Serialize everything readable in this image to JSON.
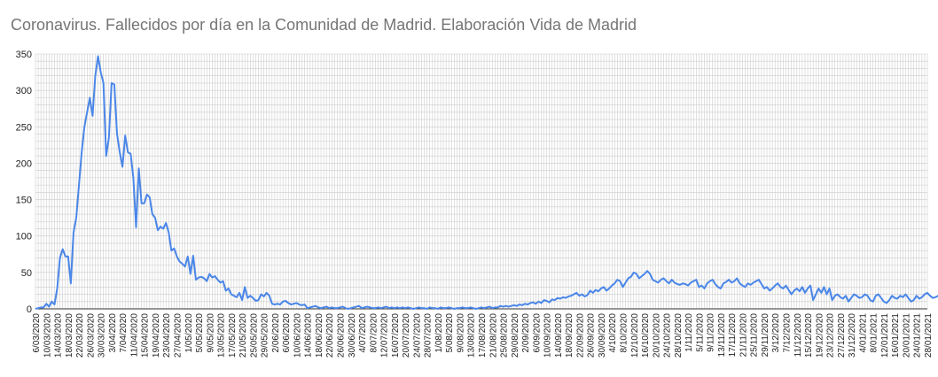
{
  "chart_data": {
    "type": "line",
    "title": "Coronavirus. Fallecidos por día en la Comunidad de Madrid. Elaboración Vida de Madrid",
    "xlabel": "",
    "ylabel": "",
    "ylim": [
      0,
      350
    ],
    "yticks": [
      "0",
      "50",
      "100",
      "150",
      "200",
      "250",
      "300",
      "350"
    ],
    "grid": true,
    "legend": "none",
    "line_color": "#4a86e8",
    "x_tick_labels": [
      "6/03/2020",
      "10/03/2020",
      "14/03/2020",
      "18/03/2020",
      "22/03/2020",
      "26/03/2020",
      "30/03/2020",
      "3/04/2020",
      "7/04/2020",
      "11/04/2020",
      "15/04/2020",
      "19/04/2020",
      "23/04/2020",
      "27/04/2020",
      "1/05/2020",
      "5/05/2020",
      "9/05/2020",
      "13/05/2020",
      "17/05/2020",
      "21/05/2020",
      "25/05/2020",
      "29/05/2020",
      "2/06/2020",
      "6/06/2020",
      "10/06/2020",
      "14/06/2020",
      "18/06/2020",
      "22/06/2020",
      "26/06/2020",
      "30/06/2020",
      "4/07/2020",
      "8/07/2020",
      "12/07/2020",
      "16/07/2020",
      "20/07/2020",
      "24/07/2020",
      "28/07/2020",
      "1/08/2020",
      "5/08/2020",
      "9/08/2020",
      "13/08/2020",
      "17/08/2020",
      "21/08/2020",
      "25/08/2020",
      "29/08/2020",
      "2/09/2020",
      "6/09/2020",
      "10/09/2020",
      "14/09/2020",
      "18/09/2020",
      "22/09/2020",
      "26/09/2020",
      "30/09/2020",
      "4/10/2020",
      "8/10/2020",
      "12/10/2020",
      "16/10/2020",
      "20/10/2020",
      "24/10/2020",
      "28/10/2020",
      "1/11/2020",
      "5/11/2020",
      "9/11/2020",
      "13/11/2020",
      "17/11/2020",
      "21/11/2020",
      "25/11/2020",
      "29/11/2020",
      "3/12/2020",
      "7/12/2020",
      "11/12/2020",
      "15/12/2020",
      "19/12/2020",
      "23/12/2020",
      "27/12/2020",
      "31/12/2020",
      "4/01/2021",
      "8/01/2021",
      "12/01/2021",
      "16/01/2021",
      "20/01/2021",
      "24/01/2021",
      "28/01/2021"
    ],
    "series": [
      {
        "x_start": "6/03/2020",
        "values": [
          0,
          1,
          2,
          2,
          7,
          3,
          10,
          6,
          28,
          70,
          82,
          72,
          72,
          35,
          105,
          125,
          170,
          215,
          250,
          270,
          290,
          265,
          320,
          347,
          325,
          310,
          210,
          235,
          310,
          308,
          240,
          215,
          195,
          238,
          215,
          213,
          180,
          112,
          193,
          145,
          145,
          157,
          153,
          130,
          125,
          108,
          113,
          110,
          118,
          105,
          80,
          83,
          72,
          65,
          62,
          58,
          72,
          48,
          73,
          40,
          43,
          44,
          42,
          38,
          48,
          43,
          45,
          40,
          36,
          38,
          25,
          28,
          20,
          18,
          16,
          22,
          12,
          30,
          15,
          18,
          15,
          11,
          12,
          20,
          17,
          22,
          18,
          7,
          6,
          7,
          6,
          10,
          11,
          8,
          6,
          7,
          8,
          6,
          5,
          6,
          1,
          2,
          3,
          4,
          2,
          1,
          2,
          3,
          1,
          2,
          1,
          1,
          2,
          3,
          1,
          0,
          1,
          2,
          3,
          4,
          1,
          2,
          3,
          2,
          1,
          1,
          2,
          1,
          2,
          3,
          1,
          2,
          1,
          2,
          1,
          2,
          1,
          2,
          1,
          0,
          1,
          2,
          1,
          1,
          0,
          2,
          1,
          1,
          0,
          2,
          1,
          1,
          2,
          1,
          0,
          1,
          1,
          2,
          1,
          1,
          2,
          1,
          0,
          1,
          2,
          1,
          2,
          3,
          1,
          2,
          2,
          4,
          3,
          4,
          3,
          4,
          5,
          4,
          6,
          5,
          7,
          6,
          8,
          9,
          7,
          10,
          8,
          12,
          11,
          9,
          13,
          12,
          15,
          14,
          16,
          15,
          17,
          18,
          20,
          22,
          18,
          20,
          17,
          19,
          25,
          22,
          26,
          24,
          28,
          30,
          25,
          28,
          32,
          35,
          40,
          38,
          30,
          36,
          42,
          44,
          50,
          48,
          42,
          45,
          48,
          52,
          48,
          40,
          38,
          36,
          40,
          42,
          38,
          35,
          40,
          36,
          34,
          33,
          35,
          34,
          32,
          36,
          38,
          40,
          30,
          32,
          28,
          35,
          38,
          40,
          34,
          30,
          28,
          35,
          37,
          40,
          36,
          38,
          42,
          35,
          32,
          30,
          35,
          33,
          36,
          38,
          40,
          34,
          28,
          30,
          25,
          28,
          32,
          35,
          30,
          28,
          32,
          26,
          20,
          25,
          28,
          24,
          30,
          22,
          28,
          32,
          12,
          20,
          28,
          22,
          30,
          20,
          28,
          12,
          18,
          20,
          16,
          14,
          18,
          10,
          15,
          20,
          18,
          15,
          16,
          20,
          18,
          12,
          10,
          18,
          20,
          15,
          10,
          8,
          12,
          18,
          15,
          14,
          18,
          16,
          20,
          15,
          10,
          12,
          18,
          14,
          16,
          20,
          22,
          18,
          15,
          16,
          18,
          20,
          22,
          25,
          30,
          28,
          25,
          30,
          35,
          28,
          22,
          28,
          30,
          35,
          40
        ]
      }
    ]
  }
}
